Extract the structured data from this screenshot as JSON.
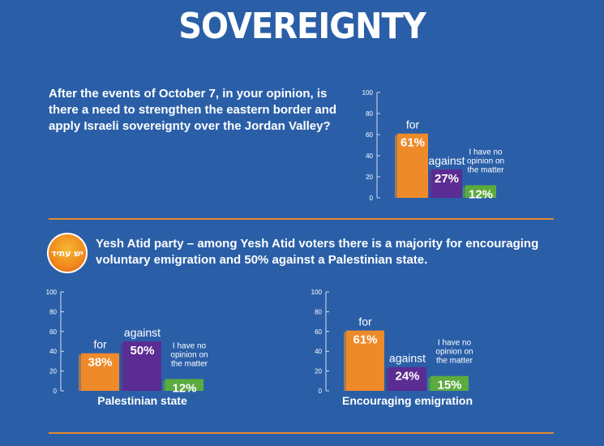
{
  "header": {
    "title": "SOVEREIGNTY"
  },
  "question": "After the events of October 7, in your opinion, is there a need to strengthen the eastern border and apply Israeli sovereignty over the Jordan Valley?",
  "party": {
    "logo_text": "יש עתיד",
    "statement": "Yesh Atid party – among Yesh Atid voters there is a majority for encouraging voluntary emigration and 50% against a Palestinian state."
  },
  "colors": {
    "background": "#2a5fa8",
    "for": "#ee8a2a",
    "against": "#5b2c91",
    "no_opinion": "#5cab3f",
    "divider": "#e38a2e"
  },
  "chart_data": [
    {
      "type": "bar",
      "title": "",
      "categories": [
        "for",
        "against",
        "I have no opinion on the matter"
      ],
      "values": [
        61,
        27,
        12
      ],
      "value_labels": [
        "61%",
        "27%",
        "12%"
      ],
      "ylim": [
        0,
        100
      ],
      "yticks": [
        0,
        20,
        40,
        60,
        80,
        100
      ],
      "grid": false
    },
    {
      "type": "bar",
      "title": "Palestinian state",
      "categories": [
        "for",
        "against",
        "I have no opinion on the matter"
      ],
      "values": [
        38,
        50,
        12
      ],
      "value_labels": [
        "38%",
        "50%",
        "12%"
      ],
      "ylim": [
        0,
        100
      ],
      "yticks": [
        0,
        20,
        40,
        60,
        80,
        100
      ],
      "grid": false
    },
    {
      "type": "bar",
      "title": "Encouraging emigration",
      "categories": [
        "for",
        "against",
        "I have no opinion on the matter"
      ],
      "values": [
        61,
        24,
        15
      ],
      "value_labels": [
        "61%",
        "24%",
        "15%"
      ],
      "ylim": [
        0,
        100
      ],
      "yticks": [
        0,
        20,
        40,
        60,
        80,
        100
      ],
      "grid": false
    }
  ]
}
